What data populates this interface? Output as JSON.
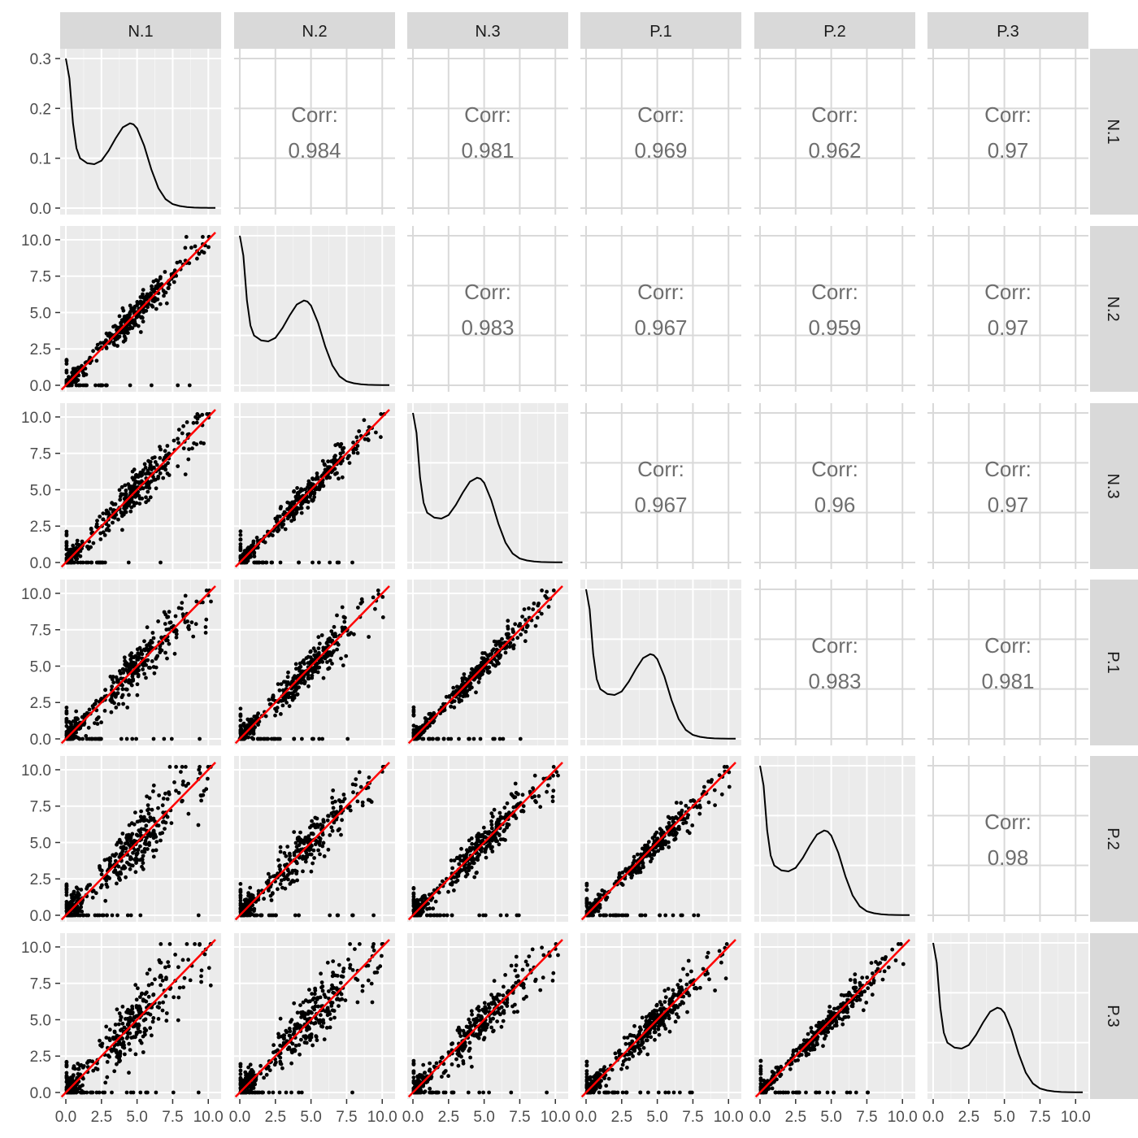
{
  "chart_data": {
    "type": "scatter",
    "variables": [
      "N.1",
      "N.2",
      "N.3",
      "P.1",
      "P.2",
      "P.3"
    ],
    "correlation_label": "Corr:",
    "correlations": [
      {
        "row": "N.1",
        "col": "N.2",
        "value": "0.984"
      },
      {
        "row": "N.1",
        "col": "N.3",
        "value": "0.981"
      },
      {
        "row": "N.1",
        "col": "P.1",
        "value": "0.969"
      },
      {
        "row": "N.1",
        "col": "P.2",
        "value": "0.962"
      },
      {
        "row": "N.1",
        "col": "P.3",
        "value": "0.97"
      },
      {
        "row": "N.2",
        "col": "N.3",
        "value": "0.983"
      },
      {
        "row": "N.2",
        "col": "P.1",
        "value": "0.967"
      },
      {
        "row": "N.2",
        "col": "P.2",
        "value": "0.959"
      },
      {
        "row": "N.2",
        "col": "P.3",
        "value": "0.97"
      },
      {
        "row": "N.3",
        "col": "P.1",
        "value": "0.967"
      },
      {
        "row": "N.3",
        "col": "P.2",
        "value": "0.96"
      },
      {
        "row": "N.3",
        "col": "P.3",
        "value": "0.97"
      },
      {
        "row": "P.1",
        "col": "P.2",
        "value": "0.983"
      },
      {
        "row": "P.1",
        "col": "P.3",
        "value": "0.981"
      },
      {
        "row": "P.2",
        "col": "P.3",
        "value": "0.98"
      }
    ],
    "x_ticks": [
      "0.0",
      "2.5",
      "5.0",
      "7.5",
      "10.0"
    ],
    "y_ticks": [
      "0.0",
      "2.5",
      "5.0",
      "7.5",
      "10.0"
    ],
    "density_y_ticks": [
      "0.0",
      "0.1",
      "0.2",
      "0.3"
    ],
    "xlim": [
      0,
      10.5
    ],
    "ylim": [
      0,
      10.5
    ],
    "density_ylim": [
      0,
      0.3
    ],
    "reference_line": {
      "slope": 1,
      "intercept": 0,
      "color": "#ff0000"
    },
    "density_curve": {
      "x": [
        0.0,
        0.25,
        0.5,
        0.75,
        1.0,
        1.25,
        1.5,
        2.0,
        2.5,
        3.0,
        3.5,
        4.0,
        4.5,
        4.75,
        5.0,
        5.5,
        6.0,
        6.5,
        7.0,
        7.5,
        8.0,
        8.5,
        9.0,
        9.5,
        10.0,
        10.5
      ],
      "N.1": [
        0.3,
        0.26,
        0.17,
        0.12,
        0.1,
        0.095,
        0.09,
        0.088,
        0.095,
        0.115,
        0.14,
        0.162,
        0.17,
        0.168,
        0.16,
        0.125,
        0.078,
        0.04,
        0.018,
        0.008,
        0.004,
        0.002,
        0.001,
        0.0007,
        0.0005,
        0.0003
      ]
    },
    "grid": true,
    "panel_background": "#ebebeb",
    "strip_background": "#d9d9d9",
    "point_color": "#000000"
  }
}
